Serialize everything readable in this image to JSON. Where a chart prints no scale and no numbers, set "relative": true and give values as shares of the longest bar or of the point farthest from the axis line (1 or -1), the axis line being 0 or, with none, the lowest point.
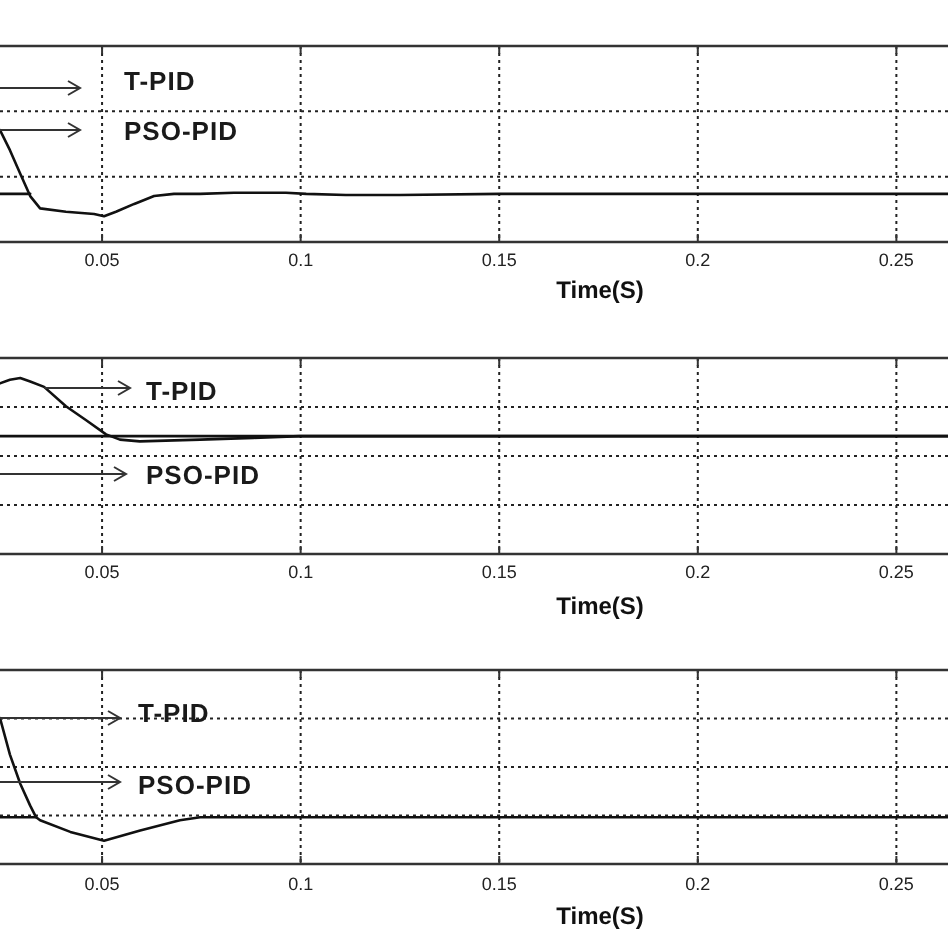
{
  "chart_data": [
    {
      "type": "line",
      "xlabel": "Time(S)",
      "relative": true,
      "xlim": [
        0.0243,
        0.263
      ],
      "xticks": [
        0.05,
        0.1,
        0.15,
        0.2,
        0.25
      ],
      "grid": true,
      "tick_labels": "x",
      "annotations": [
        "T-PID",
        "PSO-PID"
      ],
      "series": [
        {
          "color": "#111111",
          "x": [
            0.0243,
            0.0268,
            0.0294,
            0.0319,
            0.0344,
            0.0409,
            0.048,
            0.0505,
            0.0535,
            0.0581,
            0.0631,
            0.0681,
            0.0747,
            0.0832,
            0.0963,
            0.1014,
            0.1114,
            0.125,
            0.1502,
            0.1754,
            0.2005,
            0.2257,
            0.263
          ],
          "values": [
            1,
            0.82,
            0.61,
            0.41,
            0.3,
            0.27,
            0.25,
            0.23,
            0.27,
            0.34,
            0.41,
            0.43,
            0.43,
            0.44,
            0.44,
            0.43,
            0.42,
            0.42,
            0.43,
            0.43,
            0.43,
            0.43,
            0.43
          ]
        },
        {
          "color": "#111111",
          "x": [
            0.0243,
            0.0319
          ],
          "values": [
            0.43,
            0.43
          ]
        }
      ]
    },
    {
      "type": "line",
      "xlabel": "Time(S)",
      "relative": true,
      "xlim": [
        0.0243,
        0.263
      ],
      "xticks": [
        0.05,
        0.1,
        0.15,
        0.2,
        0.25
      ],
      "grid": true,
      "tick_labels": "x",
      "annotations": [
        "T-PID",
        "PSO-PID"
      ],
      "series": [
        {
          "color": "#111111",
          "x": [
            0.0243,
            0.0268,
            0.0294,
            0.0319,
            0.0354,
            0.0409,
            0.046,
            0.051,
            0.0545,
            0.0595,
            0.0747,
            0.0882,
            0.0998,
            0.263
          ],
          "values": [
            0.97,
            0.99,
            1,
            0.98,
            0.95,
            0.84,
            0.76,
            0.68,
            0.65,
            0.64,
            0.65,
            0.66,
            0.67,
            0.67
          ]
        },
        {
          "color": "#111111",
          "x": [
            0.0243,
            0.263
          ],
          "values": [
            0.67,
            0.67
          ]
        }
      ]
    },
    {
      "type": "line",
      "xlabel": "Time(S)",
      "relative": true,
      "xlim": [
        0.0243,
        0.263
      ],
      "xticks": [
        0.05,
        0.1,
        0.15,
        0.2,
        0.25
      ],
      "grid": true,
      "tick_labels": "x",
      "annotations": [
        "T-PID",
        "PSO-PID"
      ],
      "series": [
        {
          "color": "#111111",
          "x": [
            0.0243,
            0.0268,
            0.0294,
            0.0319,
            0.0334,
            0.0344,
            0.042,
            0.0505,
            0.0596,
            0.0696,
            0.0747,
            0.263
          ],
          "values": [
            1,
            0.75,
            0.55,
            0.4,
            0.32,
            0.3,
            0.22,
            0.16,
            0.23,
            0.3,
            0.32,
            0.32
          ]
        },
        {
          "color": "#111111",
          "x": [
            0.0243,
            0.0334
          ],
          "values": [
            0.32,
            0.32
          ]
        }
      ]
    }
  ]
}
